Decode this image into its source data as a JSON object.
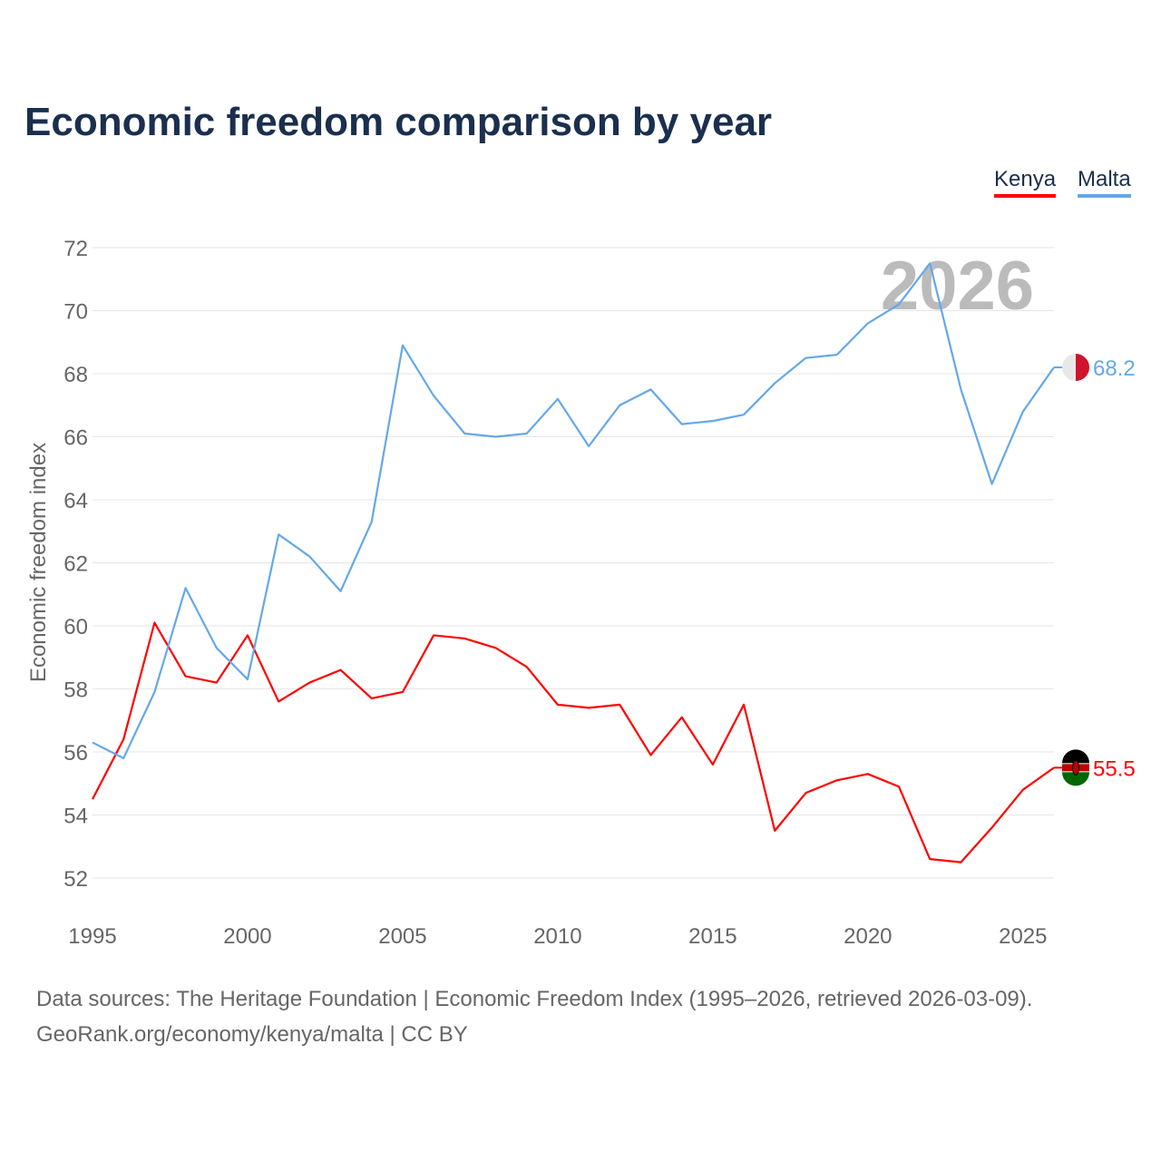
{
  "title": "Economic freedom comparison by year",
  "footer": {
    "line1": "Data sources: The Heritage Foundation | Economic Freedom Index (1995–2026, retrieved 2026-03-09).",
    "line2": "GeoRank.org/economy/kenya/malta | CC BY"
  },
  "chart_data": {
    "type": "line",
    "title": "Economic freedom comparison by year",
    "xlabel": "",
    "ylabel": "Economic freedom index",
    "watermark_year": "2026",
    "xlim": [
      1995,
      2026
    ],
    "ylim": [
      52,
      72
    ],
    "x_ticks": [
      "1995",
      "2000",
      "2005",
      "2010",
      "2015",
      "2020",
      "2025"
    ],
    "y_ticks": [
      "52",
      "54",
      "56",
      "58",
      "60",
      "62",
      "64",
      "66",
      "68",
      "70",
      "72"
    ],
    "grid": true,
    "legend_position": "top-right",
    "x": [
      1995,
      1996,
      1997,
      1998,
      1999,
      2000,
      2001,
      2002,
      2003,
      2004,
      2005,
      2006,
      2007,
      2008,
      2009,
      2010,
      2011,
      2012,
      2013,
      2014,
      2015,
      2016,
      2017,
      2018,
      2019,
      2020,
      2021,
      2022,
      2023,
      2024,
      2025,
      2026
    ],
    "series": [
      {
        "name": "Kenya",
        "color": "#ff0000",
        "end_label": "55.5",
        "flag": "kenya-flag",
        "values": [
          54.5,
          56.4,
          60.1,
          58.4,
          58.2,
          59.7,
          57.6,
          58.2,
          58.6,
          57.7,
          57.9,
          59.7,
          59.6,
          59.3,
          58.7,
          57.5,
          57.4,
          57.5,
          55.9,
          57.1,
          55.6,
          57.5,
          53.5,
          54.7,
          55.1,
          55.3,
          54.9,
          52.6,
          52.5,
          53.6,
          54.8,
          55.5
        ]
      },
      {
        "name": "Malta",
        "color": "#64a8ea",
        "end_label": "68.2",
        "flag": "malta-flag",
        "values": [
          56.3,
          55.8,
          57.9,
          61.2,
          59.3,
          58.3,
          62.9,
          62.2,
          61.1,
          63.3,
          68.9,
          67.3,
          66.1,
          66.0,
          66.1,
          67.2,
          65.7,
          67.0,
          67.5,
          66.4,
          66.5,
          66.7,
          67.7,
          68.5,
          68.6,
          69.6,
          70.2,
          71.5,
          67.5,
          64.5,
          66.8,
          68.2
        ]
      }
    ]
  }
}
